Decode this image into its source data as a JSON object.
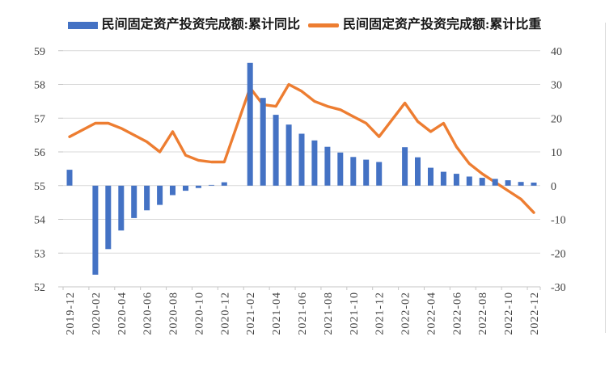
{
  "colors": {
    "bar": "#4472C4",
    "line": "#ED7D31",
    "grid": "#D9D9D9",
    "axis": "#C6C6C6",
    "axis_text": "#404040",
    "legend_text": "#151515"
  },
  "chart_data": {
    "type": "combo-bar-line",
    "title": "",
    "legend_position": "top",
    "grid": true,
    "categories": [
      "2019-12",
      "2020-02",
      "2020-03",
      "2020-04",
      "2020-05",
      "2020-06",
      "2020-07",
      "2020-08",
      "2020-09",
      "2020-10",
      "2020-11",
      "2020-12",
      "2021-02",
      "2021-03",
      "2021-04",
      "2021-05",
      "2021-06",
      "2021-07",
      "2021-08",
      "2021-09",
      "2021-10",
      "2021-11",
      "2021-12",
      "2022-02",
      "2022-03",
      "2022-04",
      "2022-05",
      "2022-06",
      "2022-07",
      "2022-08",
      "2022-09",
      "2022-10",
      "2022-11",
      "2022-12"
    ],
    "series": [
      {
        "name": "民间固定资产投资完成额:累计同比",
        "type": "bar",
        "axis": "right",
        "values": [
          4.7,
          -26.4,
          -18.8,
          -13.3,
          -9.6,
          -7.3,
          -5.7,
          -2.8,
          -1.5,
          -0.7,
          0.2,
          1.0,
          36.4,
          26.0,
          21.0,
          18.1,
          15.4,
          13.4,
          11.5,
          9.8,
          8.5,
          7.7,
          7.0,
          11.4,
          8.4,
          5.3,
          4.1,
          3.5,
          2.7,
          2.3,
          2.0,
          1.6,
          1.1,
          0.9
        ]
      },
      {
        "name": "民间固定资产投资完成额:累计比重",
        "type": "line",
        "axis": "left",
        "values": [
          56.45,
          56.85,
          56.85,
          56.7,
          56.5,
          56.3,
          56.0,
          56.6,
          55.9,
          55.75,
          55.7,
          55.7,
          57.9,
          57.4,
          57.35,
          58.0,
          57.8,
          57.5,
          57.35,
          57.25,
          57.05,
          56.85,
          56.45,
          57.45,
          56.9,
          56.6,
          56.85,
          56.15,
          55.65,
          55.35,
          55.1,
          54.85,
          54.6,
          54.2
        ]
      }
    ],
    "left_axis": {
      "range": [
        52,
        59
      ],
      "ticks": [
        59,
        58,
        57,
        56,
        55,
        54,
        53,
        52
      ]
    },
    "right_axis": {
      "range": [
        -30,
        40
      ],
      "ticks": [
        40,
        30,
        20,
        10,
        0,
        -10,
        -20,
        -30
      ]
    },
    "x_tick_labels": [
      "2019-12",
      "2020-02",
      "2020-04",
      "2020-06",
      "2020-08",
      "2020-10",
      "2020-12",
      "2021-02",
      "2021-04",
      "2021-06",
      "2021-08",
      "2021-10",
      "2021-12",
      "2022-02",
      "2022-04",
      "2022-06",
      "2022-08",
      "2022-10",
      "2022-12"
    ]
  }
}
